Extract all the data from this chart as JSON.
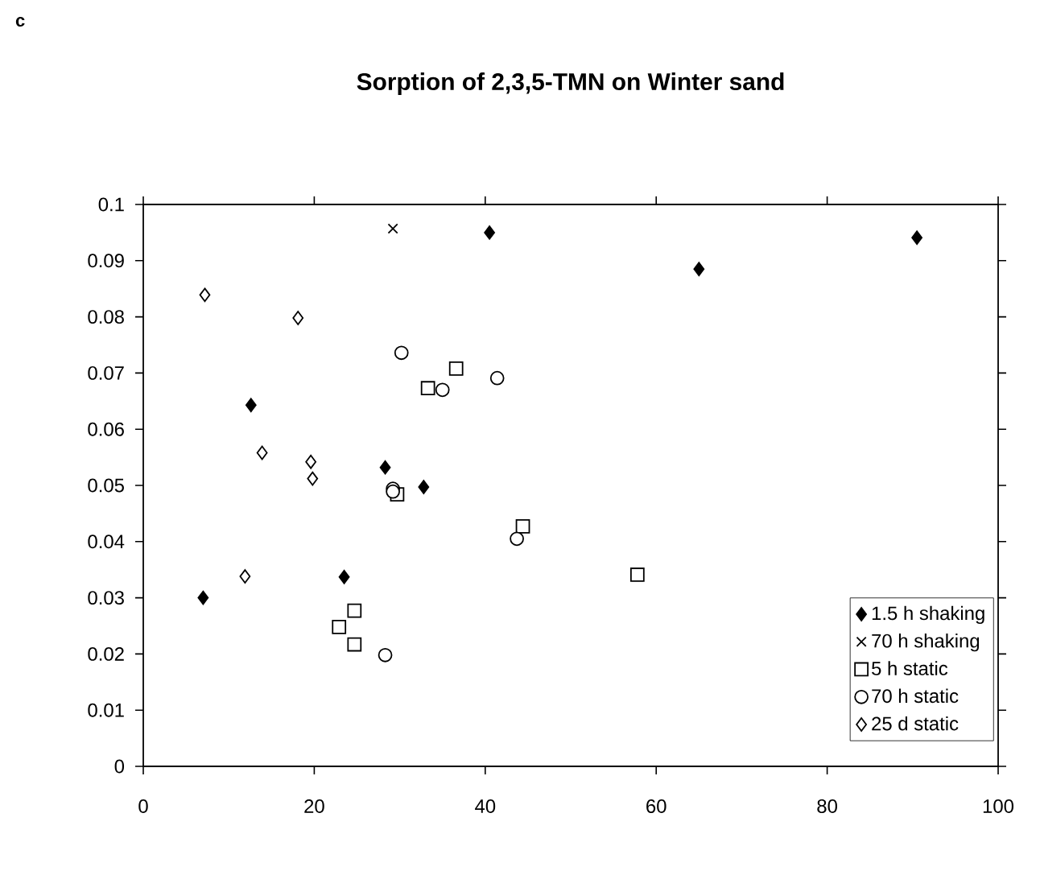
{
  "chart_data": {
    "type": "scatter",
    "title": "Sorption of 2,3,5-TMN on Winter sand",
    "annotations": [
      "c"
    ],
    "xlim": [
      0,
      100
    ],
    "xticks": [
      0,
      20,
      40,
      60,
      80,
      100
    ],
    "ylim": [
      0,
      0.1
    ],
    "yticks": [
      0,
      0.01,
      0.02,
      0.03,
      0.04,
      0.05,
      0.06,
      0.07,
      0.08,
      0.09,
      0.1
    ],
    "legend": "bottom right",
    "series": [
      {
        "name": "1.5 h shaking",
        "color": "#000000",
        "marker": "diamond",
        "x": [
          7.0,
          23.5,
          12.6,
          28.3,
          32.8,
          40.5,
          65.0,
          90.5
        ],
        "values": [
          0.03,
          0.0337,
          0.0643,
          0.0532,
          0.0497,
          0.095,
          0.0885,
          0.0941
        ]
      },
      {
        "name": "70 h shaking",
        "color": "#000000",
        "marker": "cross",
        "x": [
          29.2
        ],
        "values": [
          0.0957
        ]
      },
      {
        "name": "5 h static",
        "color": "#000000",
        "marker": "square",
        "x": [
          33.3,
          36.6,
          29.7,
          44.4,
          22.9,
          24.7,
          24.7,
          57.8
        ],
        "values": [
          0.0673,
          0.0708,
          0.0484,
          0.0427,
          0.0248,
          0.0277,
          0.0217,
          0.0341
        ]
      },
      {
        "name": "70 h static",
        "color": "#000000",
        "marker": "circle",
        "x": [
          30.2,
          35.0,
          41.4,
          29.2,
          29.2,
          43.7,
          28.3
        ],
        "values": [
          0.0736,
          0.067,
          0.0691,
          0.0494,
          0.0489,
          0.0405,
          0.0198
        ]
      },
      {
        "name": "25 d static",
        "color": "#000000",
        "marker": "diamond",
        "x": [
          7.2,
          18.1,
          13.9,
          19.6,
          19.8,
          11.9
        ],
        "values": [
          0.0839,
          0.0798,
          0.0558,
          0.0542,
          0.0512,
          0.0338
        ]
      }
    ]
  }
}
